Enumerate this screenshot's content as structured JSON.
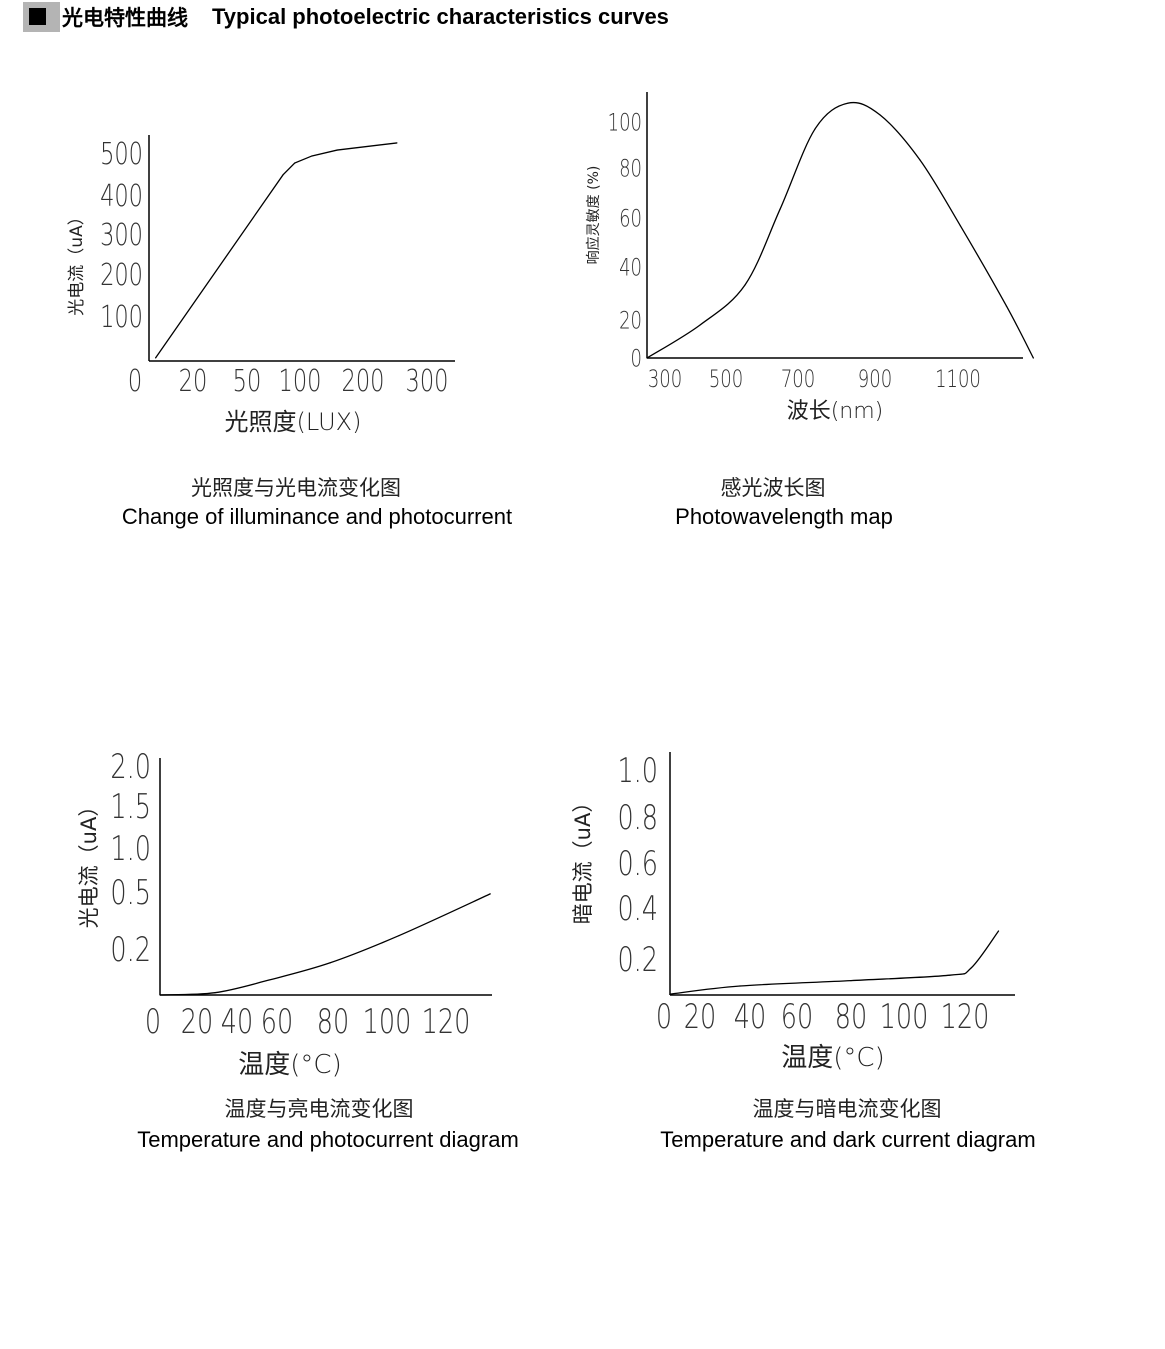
{
  "header": {
    "cn_title": "光电特性曲线",
    "en_title": "Typical photoelectric characteristics curves",
    "bullet_icon": "black-square"
  },
  "captions": [
    {
      "cn": "光照度与光电流变化图",
      "en": "Change of illuminance and photocurrent"
    },
    {
      "cn": "感光波长图",
      "en": "Photowavelength map"
    },
    {
      "cn": "温度与亮电流变化图",
      "en": "Temperature and photocurrent diagram"
    },
    {
      "cn": "温度与暗电流变化图",
      "en": "Temperature and dark current diagram"
    }
  ],
  "chart_data": [
    {
      "type": "line",
      "xlabel": "光照度(LUX)",
      "ylabel": "光电流（uA）",
      "x_ticks": [
        "0",
        "20",
        "50",
        "100",
        "200",
        "300"
      ],
      "y_ticks": [
        "100",
        "200",
        "300",
        "400",
        "500"
      ],
      "xlim": [
        0,
        300
      ],
      "ylim": [
        0,
        500
      ],
      "grid": false,
      "series": [
        {
          "x": [
            3,
            84,
            95,
            119,
            159,
            253
          ],
          "y": [
            7,
            448,
            476,
            493,
            507,
            524
          ]
        }
      ]
    },
    {
      "type": "line",
      "xlabel": "波长(nm)",
      "ylabel": "响应灵敏度 (%)",
      "x_ticks": [
        "300",
        "500",
        "700",
        "900",
        "1100"
      ],
      "y_ticks": [
        "0",
        "20",
        "40",
        "60",
        "80",
        "100"
      ],
      "xlim": [
        240,
        1260
      ],
      "ylim": [
        0,
        100
      ],
      "grid": false,
      "series": [
        {
          "x": [
            240,
            415,
            553,
            650,
            744,
            830,
            912,
            1008,
            1105,
            1201,
            1257
          ],
          "y": [
            0,
            14,
            31,
            63,
            97,
            108,
            103,
            84,
            56,
            22,
            0
          ]
        }
      ]
    },
    {
      "type": "line",
      "xlabel": "温度(°C)",
      "ylabel": "光电流（uA）",
      "x_ticks": [
        "0",
        "20",
        "40",
        "60",
        "80",
        "100",
        "120"
      ],
      "y_ticks": [
        "0.2",
        "0.5",
        "1.0",
        "1.5",
        "2.0"
      ],
      "xlim": [
        0,
        135
      ],
      "ylim": [
        0,
        2.0
      ],
      "grid": false,
      "series": [
        {
          "x": [
            0,
            29,
            56,
            79,
            104,
            135
          ],
          "y": [
            0,
            0.01,
            0.065,
            0.14,
            0.27,
            0.49
          ]
        }
      ]
    },
    {
      "type": "line",
      "xlabel": "温度(°C)",
      "ylabel": "暗电流（uA）",
      "x_ticks": [
        "0",
        "20",
        "40",
        "60",
        "80",
        "100",
        "120"
      ],
      "y_ticks": [
        "0.2",
        "0.4",
        "0.6",
        "0.8",
        "1.0"
      ],
      "xlim": [
        0,
        131
      ],
      "ylim": [
        0,
        1.0
      ],
      "grid": false,
      "series": [
        {
          "x": [
            0,
            36,
            80,
            115,
            122,
            131
          ],
          "y": [
            0.005,
            0.05,
            0.08,
            0.11,
            0.15,
            0.31
          ]
        }
      ]
    }
  ]
}
